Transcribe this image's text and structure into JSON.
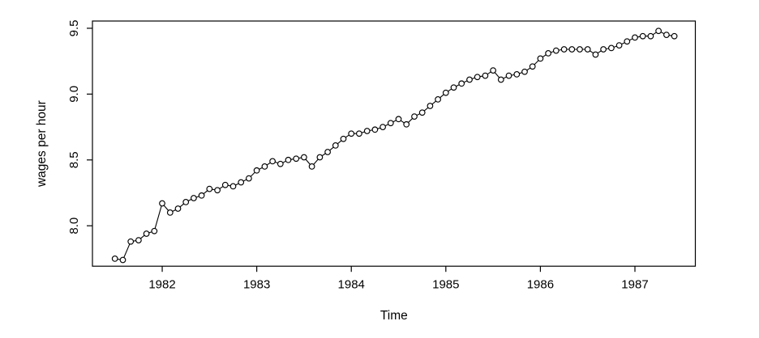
{
  "chart_data": {
    "type": "line",
    "title": "",
    "xlabel": "Time",
    "ylabel": "wages per hour",
    "marker": "open-circle",
    "line_color": "#000000",
    "marker_color": "#000000",
    "background_color": "#ffffff",
    "grid": false,
    "legend": null,
    "frequency": "monthly",
    "x_start": 1981.5,
    "x_interval": 0.0833333,
    "x_ticks": [
      "1982",
      "1983",
      "1984",
      "1985",
      "1986",
      "1987"
    ],
    "x_tick_values": [
      1982,
      1983,
      1984,
      1985,
      1986,
      1987
    ],
    "y_ticks": [
      "8.0",
      "8.5",
      "9.0",
      "9.5"
    ],
    "y_tick_values": [
      8.0,
      8.5,
      9.0,
      9.5
    ],
    "xlim": [
      1981.262,
      1987.639
    ],
    "ylim": [
      7.693,
      9.555
    ],
    "values": [
      7.75,
      7.74,
      7.88,
      7.89,
      7.94,
      7.96,
      8.17,
      8.1,
      8.13,
      8.18,
      8.21,
      8.23,
      8.28,
      8.27,
      8.31,
      8.3,
      8.33,
      8.36,
      8.42,
      8.45,
      8.49,
      8.47,
      8.5,
      8.51,
      8.52,
      8.45,
      8.52,
      8.56,
      8.61,
      8.66,
      8.7,
      8.7,
      8.72,
      8.73,
      8.75,
      8.78,
      8.81,
      8.77,
      8.83,
      8.86,
      8.91,
      8.96,
      9.01,
      9.05,
      9.08,
      9.11,
      9.13,
      9.14,
      9.18,
      9.11,
      9.14,
      9.15,
      9.17,
      9.21,
      9.27,
      9.31,
      9.33,
      9.34,
      9.34,
      9.34,
      9.34,
      9.3,
      9.34,
      9.35,
      9.37,
      9.4,
      9.43,
      9.44,
      9.44,
      9.48,
      9.45,
      9.44
    ]
  }
}
